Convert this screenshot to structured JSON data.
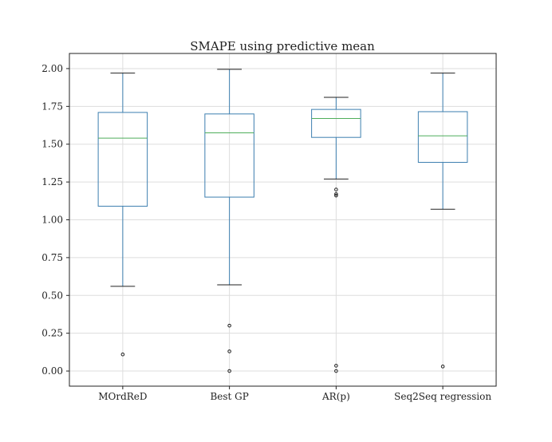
{
  "chart_data": {
    "type": "boxplot",
    "title": "SMAPE using predictive mean",
    "xlabel": "",
    "ylabel": "",
    "ylim": [
      -0.1,
      2.1
    ],
    "yticks": [
      "0.00",
      "0.25",
      "0.50",
      "0.75",
      "1.00",
      "1.25",
      "1.50",
      "1.75",
      "2.00"
    ],
    "grid": true,
    "colors": {
      "box": "#3d7fb0",
      "median": "#4fae5b",
      "whisker": "#3d7fb0",
      "cap": "#222222",
      "outlier": "#222222",
      "grid": "#dddddd",
      "frame": "#222222"
    },
    "categories": [
      "MOrdReD",
      "Best GP",
      "AR(p)",
      "Seq2Seq regression"
    ],
    "boxes": [
      {
        "label": "MOrdReD",
        "whislo": 0.56,
        "q1": 1.09,
        "med": 1.54,
        "q3": 1.71,
        "whishi": 1.97,
        "fliers": [
          0.11
        ]
      },
      {
        "label": "Best GP",
        "whislo": 0.57,
        "q1": 1.15,
        "med": 1.575,
        "q3": 1.7,
        "whishi": 1.995,
        "fliers": [
          0.3,
          0.13,
          0.0
        ]
      },
      {
        "label": "AR(p)",
        "whislo": 1.27,
        "q1": 1.545,
        "med": 1.67,
        "q3": 1.73,
        "whishi": 1.81,
        "fliers": [
          1.2,
          1.17,
          1.16,
          0.035,
          0.0
        ]
      },
      {
        "label": "Seq2Seq regression",
        "whislo": 1.07,
        "q1": 1.38,
        "med": 1.555,
        "q3": 1.715,
        "whishi": 1.97,
        "fliers": [
          0.03
        ]
      }
    ]
  }
}
